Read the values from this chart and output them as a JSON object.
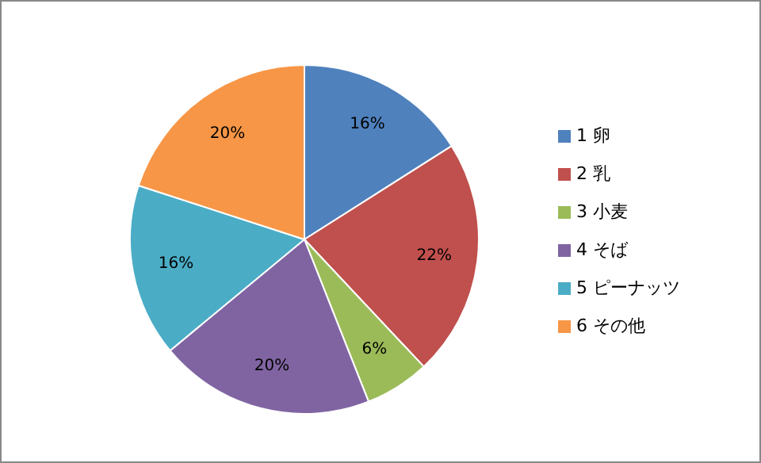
{
  "chart_data": {
    "type": "pie",
    "categories": [
      "1 卵",
      "2 乳",
      "3 小麦",
      "4 そば",
      "5 ピーナッツ",
      "6 その他"
    ],
    "values": [
      16,
      22,
      6,
      20,
      16,
      20
    ],
    "colors": [
      "#4f81bd",
      "#c0504d",
      "#9bbb59",
      "#8064a2",
      "#4bacc6",
      "#f79646"
    ],
    "value_labels": [
      "16%",
      "22%",
      "6%",
      "20%",
      "16%",
      "20%"
    ],
    "legend": "right"
  }
}
